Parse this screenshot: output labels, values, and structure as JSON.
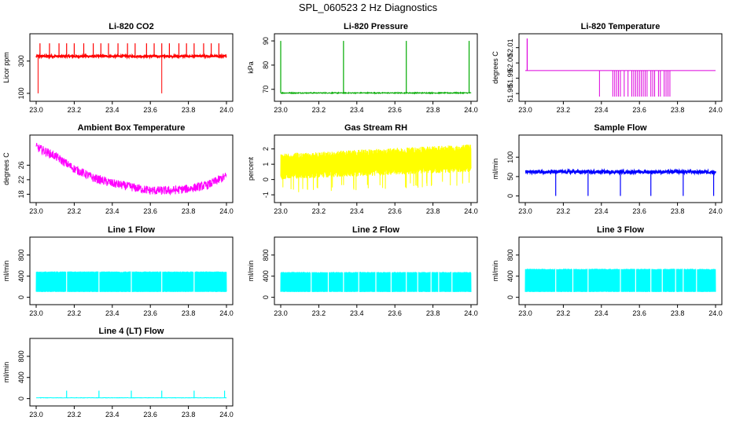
{
  "figure_title": "SPL_060523  2 Hz Diagnostics",
  "chart_data": [
    {
      "id": "co2",
      "type": "line",
      "title": "Li-820 CO2",
      "xlabel": "",
      "ylabel": "Licor ppm",
      "color": "#ff0000",
      "xlim": [
        23.0,
        24.0
      ],
      "ylim": [
        80,
        440
      ],
      "xticks": [
        23.0,
        23.2,
        23.4,
        23.6,
        23.8,
        24.0
      ],
      "xtick_labels": [
        "23.0",
        "23.2",
        "23.4",
        "23.6",
        "23.8",
        "24.0"
      ],
      "yticks": [
        100,
        300
      ],
      "ytick_labels": [
        "100",
        "300"
      ],
      "series": [
        {
          "name": "CO2",
          "baseline": 330,
          "noise": 6,
          "spike_x": [
            23.02,
            23.07,
            23.12,
            23.16,
            23.2,
            23.25,
            23.3,
            23.34,
            23.38,
            23.43,
            23.48,
            23.52,
            23.58,
            23.62,
            23.66,
            23.7,
            23.75,
            23.79,
            23.83,
            23.88,
            23.92,
            23.96
          ],
          "spike_value": 410,
          "dip_x": [
            23.01,
            23.66
          ],
          "dip_value": 100
        }
      ]
    },
    {
      "id": "pressure",
      "type": "line",
      "title": "Li-820 Pressure",
      "xlabel": "",
      "ylabel": "kPa",
      "color": "#00aa00",
      "xlim": [
        23.0,
        24.0
      ],
      "ylim": [
        67,
        91
      ],
      "xticks": [
        23.0,
        23.2,
        23.4,
        23.6,
        23.8,
        24.0
      ],
      "xtick_labels": [
        "23.0",
        "23.2",
        "23.4",
        "23.6",
        "23.8",
        "24.0"
      ],
      "yticks": [
        70,
        80,
        90
      ],
      "ytick_labels": [
        "70",
        "80",
        "90"
      ],
      "series": [
        {
          "name": "Pressure",
          "baseline": 68.5,
          "noise": 0.2,
          "spike_x": [
            23.0,
            23.33,
            23.66,
            23.99
          ],
          "spike_value": 90,
          "dip_x": [],
          "dip_value": 68
        }
      ]
    },
    {
      "id": "temperature",
      "type": "line",
      "title": "Li-820 Temperature",
      "xlabel": "",
      "ylabel": "degrees C",
      "color": "#dd00dd",
      "xlim": [
        23.0,
        24.0
      ],
      "ylim": [
        51.978,
        52.016
      ],
      "xticks": [
        23.0,
        23.2,
        23.4,
        23.6,
        23.8,
        24.0
      ],
      "xtick_labels": [
        "23.0",
        "23.2",
        "23.4",
        "23.6",
        "23.8",
        "24.0"
      ],
      "yticks": [
        51.98,
        51.99,
        52.0,
        52.01
      ],
      "ytick_labels": [
        "51.98",
        "51.99",
        "52.00",
        "52.01"
      ],
      "series": [
        {
          "name": "Temperature",
          "baseline": 51.995,
          "noise": 0,
          "spike_x": [
            23.01
          ],
          "spike_value": 52.016,
          "dip_x": [
            23.39,
            23.46,
            23.47,
            23.48,
            23.49,
            23.5,
            23.52,
            23.54,
            23.56,
            23.57,
            23.58,
            23.59,
            23.6,
            23.61,
            23.62,
            23.63,
            23.64,
            23.66,
            23.67,
            23.68,
            23.7,
            23.71,
            23.73,
            23.74,
            23.75,
            23.76
          ],
          "dip_value": 51.978
        }
      ]
    },
    {
      "id": "ambient",
      "type": "line",
      "title": "Ambient Box Temperature",
      "xlabel": "",
      "ylabel": "degrees C",
      "color": "#ff00ff",
      "xlim": [
        23.0,
        24.0
      ],
      "ylim": [
        17,
        33
      ],
      "xticks": [
        23.0,
        23.2,
        23.4,
        23.6,
        23.8,
        24.0
      ],
      "xtick_labels": [
        "23.0",
        "23.2",
        "23.4",
        "23.6",
        "23.8",
        "24.0"
      ],
      "yticks": [
        18,
        22,
        26
      ],
      "ytick_labels": [
        "18",
        "22",
        "26"
      ],
      "series": [
        {
          "name": "Ambient",
          "x": [
            23.0,
            23.1,
            23.2,
            23.3,
            23.4,
            23.5,
            23.6,
            23.7,
            23.8,
            23.9,
            24.0
          ],
          "values": [
            31,
            28.5,
            25,
            22.5,
            21,
            20,
            19,
            19,
            19.5,
            20.5,
            23
          ],
          "noise": 1.2
        }
      ]
    },
    {
      "id": "rh",
      "type": "line",
      "title": "Gas Stream RH",
      "xlabel": "",
      "ylabel": "percent",
      "color": "#ffff00",
      "xlim": [
        23.0,
        24.0
      ],
      "ylim": [
        -1.2,
        2.6
      ],
      "xticks": [
        23.0,
        23.2,
        23.4,
        23.6,
        23.8,
        24.0
      ],
      "xtick_labels": [
        "23.0",
        "23.2",
        "23.4",
        "23.6",
        "23.8",
        "24.0"
      ],
      "yticks": [
        -1,
        0,
        1,
        2
      ],
      "ytick_labels": [
        "-1",
        "0",
        "1",
        "2"
      ],
      "series": [
        {
          "name": "RH",
          "band_low": [
            0.0,
            0.5
          ],
          "band_high": [
            1.7,
            2.3
          ],
          "noise": 0.6
        }
      ]
    },
    {
      "id": "sampleflow",
      "type": "line",
      "title": "Sample Flow",
      "xlabel": "",
      "ylabel": "ml/min",
      "color": "#0000ff",
      "xlim": [
        23.0,
        24.0
      ],
      "ylim": [
        -5,
        145
      ],
      "xticks": [
        23.0,
        23.2,
        23.4,
        23.6,
        23.8,
        24.0
      ],
      "xtick_labels": [
        "23.0",
        "23.2",
        "23.4",
        "23.6",
        "23.8",
        "24.0"
      ],
      "yticks": [
        0,
        50,
        100
      ],
      "ytick_labels": [
        "0",
        "50",
        "100"
      ],
      "series": [
        {
          "name": "Sample Flow",
          "baseline": 62,
          "noise": 4,
          "spike_x": [
            23.16,
            23.33,
            23.5,
            23.66,
            23.83,
            23.99
          ],
          "spike_value": 0,
          "dip_x": [],
          "dip_value": 0
        }
      ]
    },
    {
      "id": "line1",
      "type": "area",
      "title": "Line 1 Flow",
      "xlabel": "",
      "ylabel": "ml/min",
      "color": "#00ffff",
      "xlim": [
        23.0,
        24.0
      ],
      "ylim": [
        -50,
        1050
      ],
      "xticks": [
        23.0,
        23.2,
        23.4,
        23.6,
        23.8,
        24.0
      ],
      "xtick_labels": [
        "23.0",
        "23.2",
        "23.4",
        "23.6",
        "23.8",
        "24.0"
      ],
      "yticks": [
        0,
        400,
        800
      ],
      "ytick_labels": [
        "0",
        "400",
        "800"
      ],
      "series": [
        {
          "name": "Line 1",
          "low": 100,
          "high": 490,
          "gaps": [
            23.16,
            23.33,
            23.5,
            23.66,
            23.83
          ]
        }
      ]
    },
    {
      "id": "line2",
      "type": "area",
      "title": "Line 2 Flow",
      "xlabel": "",
      "ylabel": "ml/min",
      "color": "#00ffff",
      "xlim": [
        23.0,
        24.0
      ],
      "ylim": [
        -50,
        1050
      ],
      "xticks": [
        23.0,
        23.2,
        23.4,
        23.6,
        23.8,
        24.0
      ],
      "xtick_labels": [
        "23.0",
        "23.2",
        "23.4",
        "23.6",
        "23.8",
        "24.0"
      ],
      "yticks": [
        0,
        400,
        800
      ],
      "ytick_labels": [
        "0",
        "400",
        "800"
      ],
      "series": [
        {
          "name": "Line 2",
          "low": 100,
          "high": 480,
          "gaps": [
            23.16,
            23.25,
            23.33,
            23.41,
            23.5,
            23.58,
            23.66,
            23.72,
            23.79,
            23.83,
            23.9
          ]
        }
      ]
    },
    {
      "id": "line3",
      "type": "area",
      "title": "Line 3 Flow",
      "xlabel": "",
      "ylabel": "ml/min",
      "color": "#00ffff",
      "xlim": [
        23.0,
        24.0
      ],
      "ylim": [
        -50,
        1050
      ],
      "xticks": [
        23.0,
        23.2,
        23.4,
        23.6,
        23.8,
        24.0
      ],
      "xtick_labels": [
        "23.0",
        "23.2",
        "23.4",
        "23.6",
        "23.8",
        "24.0"
      ],
      "yticks": [
        0,
        400,
        800
      ],
      "ytick_labels": [
        "0",
        "400",
        "800"
      ],
      "series": [
        {
          "name": "Line 3",
          "low": 100,
          "high": 540,
          "gaps": [
            23.16,
            23.25,
            23.33,
            23.5,
            23.58,
            23.66,
            23.72,
            23.79,
            23.83,
            23.9
          ]
        }
      ]
    },
    {
      "id": "line4",
      "type": "line",
      "title": "Line 4 (LT) Flow",
      "xlabel": "",
      "ylabel": "ml/min",
      "color": "#00ffff",
      "xlim": [
        23.0,
        24.0
      ],
      "ylim": [
        -50,
        1050
      ],
      "xticks": [
        23.0,
        23.2,
        23.4,
        23.6,
        23.8,
        24.0
      ],
      "xtick_labels": [
        "23.0",
        "23.2",
        "23.4",
        "23.6",
        "23.8",
        "24.0"
      ],
      "yticks": [
        0,
        400,
        800
      ],
      "ytick_labels": [
        "0",
        "400",
        "800"
      ],
      "series": [
        {
          "name": "Line 4",
          "baseline": 15,
          "noise": 3,
          "spike_x": [
            23.16,
            23.33,
            23.5,
            23.66,
            23.83,
            23.99
          ],
          "spike_value": 150,
          "dip_x": [],
          "dip_value": 15
        }
      ]
    }
  ]
}
